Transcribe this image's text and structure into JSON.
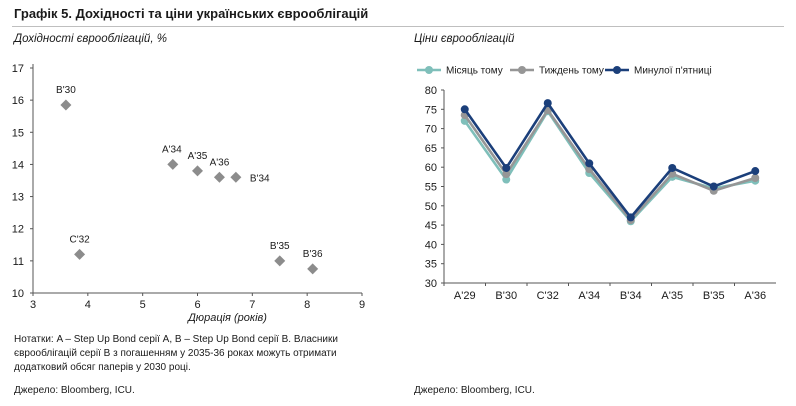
{
  "title": "Графік 5. Дохідності та ціни українських єврооблігацій",
  "notes": "Нотатки: A – Step Up Bond серії A, B – Step Up Bond серії B. Власники єврооблігацій серії B з погашенням у 2035-36 роках можуть отримати додатковий обсяг паперів у 2030 році.",
  "colors": {
    "diamond": "#8c8c8c",
    "month": "#7fbfba",
    "week": "#969696",
    "friday": "#1b3f7a"
  },
  "chart_data": [
    {
      "type": "scatter",
      "title": "Дохідності єврооблігацій, %",
      "xlabel": "Дюрація (років)",
      "ylabel": "",
      "xlim": [
        3,
        9
      ],
      "ylim": [
        10,
        17
      ],
      "xticks": [
        "3",
        "4",
        "5",
        "6",
        "7",
        "8",
        "9"
      ],
      "yticks": [
        "10",
        "11",
        "12",
        "13",
        "14",
        "15",
        "16",
        "17"
      ],
      "grid": false,
      "source": "Джерело: Bloomberg, ICU.",
      "points": [
        {
          "label": "B'30",
          "x": 3.6,
          "y": 15.85
        },
        {
          "label": "C'32",
          "x": 3.85,
          "y": 11.2
        },
        {
          "label": "A'34",
          "x": 5.55,
          "y": 14.0
        },
        {
          "label": "A'35",
          "x": 6.0,
          "y": 13.8
        },
        {
          "label": "A'36",
          "x": 6.4,
          "y": 13.6
        },
        {
          "label": "B'34",
          "x": 6.7,
          "y": 13.6
        },
        {
          "label": "B'35",
          "x": 7.5,
          "y": 11.0
        },
        {
          "label": "B'36",
          "x": 8.1,
          "y": 10.75
        }
      ]
    },
    {
      "type": "line",
      "title": "Ціни єврооблігацій",
      "xlabel": "",
      "ylabel": "",
      "ylim": [
        30,
        80
      ],
      "yticks": [
        "30",
        "35",
        "40",
        "45",
        "50",
        "55",
        "60",
        "65",
        "70",
        "75",
        "80"
      ],
      "grid": false,
      "legend": "top",
      "source": "Джерело: Bloomberg, ICU.",
      "categories": [
        "A'29",
        "B'30",
        "C'32",
        "A'34",
        "B'34",
        "A'35",
        "B'35",
        "A'36"
      ],
      "series": [
        {
          "name": "Місяць тому",
          "color": "#7fbfba",
          "values": [
            72,
            56.8,
            74.5,
            58.5,
            46,
            57.5,
            54.5,
            56.5
          ]
        },
        {
          "name": "Тиждень тому",
          "color": "#969696",
          "values": [
            73.5,
            58.2,
            74.8,
            59.5,
            46.3,
            58.3,
            53.9,
            57.2
          ]
        },
        {
          "name": "Минулої п'ятниці",
          "color": "#1b3f7a",
          "values": [
            75,
            59.8,
            76.6,
            61,
            47,
            59.8,
            55,
            59
          ]
        }
      ]
    }
  ]
}
